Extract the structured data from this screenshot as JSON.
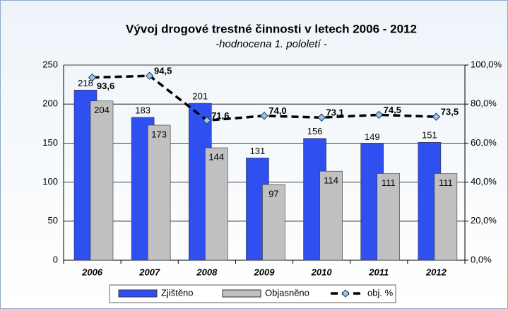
{
  "chart_data": {
    "type": "bar",
    "title": "Vývoj drogové trestné činnosti v letech 2006 - 2012",
    "subtitle": "-hodnocena 1. pololetí -",
    "categories": [
      "2006",
      "2007",
      "2008",
      "2009",
      "2010",
      "2011",
      "2012"
    ],
    "series": [
      {
        "name": "Zjištěno",
        "color": "#2f4ff0",
        "type": "bar",
        "values": [
          218,
          183,
          201,
          131,
          156,
          149,
          151
        ]
      },
      {
        "name": "Objasněno",
        "color": "#c0c0c0",
        "type": "bar",
        "values": [
          204,
          173,
          144,
          97,
          114,
          111,
          111
        ]
      },
      {
        "name": "obj. %",
        "color": "#000000",
        "type": "line",
        "axis": "y2",
        "marker_color": "#9dc3e6",
        "values": [
          93.6,
          94.5,
          71.6,
          74.0,
          73.1,
          74.5,
          73.5
        ],
        "value_labels": [
          "93,6",
          "94,5",
          "71,6",
          "74,0",
          "73,1",
          "74,5",
          "73,5"
        ]
      }
    ],
    "ylim": [
      0,
      250
    ],
    "yticks": [
      0,
      50,
      100,
      150,
      200,
      250
    ],
    "y2lim": [
      0,
      100
    ],
    "y2ticks": [
      {
        "value": 0,
        "label": "0,0%"
      },
      {
        "value": 20,
        "label": "20,0%"
      },
      {
        "value": 40,
        "label": "40,0%"
      },
      {
        "value": 60,
        "label": "60,0%"
      },
      {
        "value": 80,
        "label": "80,0%"
      },
      {
        "value": 100,
        "label": "100,0%"
      }
    ],
    "grid": true,
    "legend": "bottom"
  }
}
